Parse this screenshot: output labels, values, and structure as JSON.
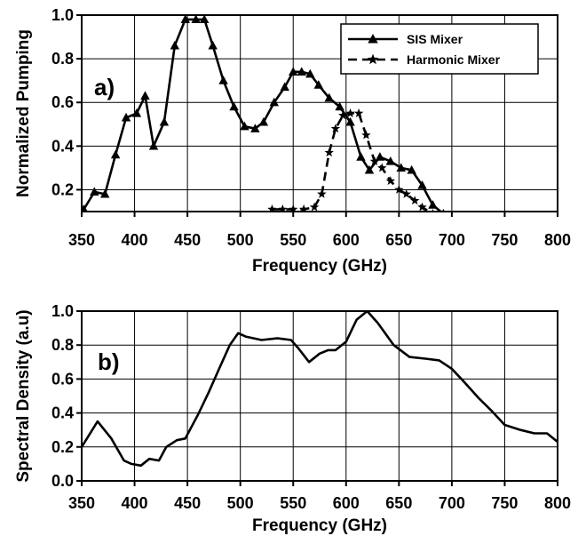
{
  "chart_data": [
    {
      "type": "line",
      "panel_label": "a)",
      "xlabel": "Frequency (GHz)",
      "ylabel": "Normalized Pumping",
      "xlim": [
        350,
        800
      ],
      "ylim": [
        0.1,
        1.0
      ],
      "xticks": [
        350,
        400,
        450,
        500,
        550,
        600,
        650,
        700,
        750,
        800
      ],
      "yticks": [
        0.2,
        0.4,
        0.6,
        0.8,
        1.0
      ],
      "ytick_labels": [
        "0.2",
        "0.4",
        "0.6",
        "0.8",
        "1.0"
      ],
      "grid": true,
      "legend_position": "top-right",
      "series": [
        {
          "name": "SIS Mixer",
          "line": "solid",
          "marker": "triangle",
          "x": [
            352,
            362,
            372,
            382,
            392,
            402,
            410,
            418,
            428,
            438,
            448,
            458,
            466,
            474,
            484,
            494,
            504,
            514,
            522,
            532,
            542,
            550,
            558,
            566,
            574,
            584,
            594,
            604,
            614,
            622,
            632,
            642,
            652,
            662,
            672,
            682,
            692
          ],
          "y": [
            0.11,
            0.19,
            0.18,
            0.36,
            0.53,
            0.55,
            0.63,
            0.4,
            0.51,
            0.86,
            0.98,
            0.98,
            0.98,
            0.86,
            0.7,
            0.58,
            0.49,
            0.48,
            0.51,
            0.6,
            0.67,
            0.74,
            0.74,
            0.73,
            0.68,
            0.62,
            0.58,
            0.51,
            0.35,
            0.29,
            0.35,
            0.33,
            0.3,
            0.29,
            0.22,
            0.13,
            0.09
          ]
        },
        {
          "name": "Harmonic Mixer",
          "line": "dashed",
          "marker": "star",
          "x": [
            530,
            540,
            550,
            560,
            570,
            577,
            584,
            590,
            597,
            604,
            612,
            619,
            627,
            634,
            642,
            650,
            657,
            665,
            672,
            682
          ],
          "y": [
            0.11,
            0.11,
            0.11,
            0.11,
            0.12,
            0.18,
            0.37,
            0.48,
            0.54,
            0.55,
            0.55,
            0.45,
            0.33,
            0.3,
            0.24,
            0.2,
            0.18,
            0.15,
            0.12,
            0.09
          ]
        }
      ]
    },
    {
      "type": "line",
      "panel_label": "b)",
      "xlabel": "Frequency (GHz)",
      "ylabel": "Spectral Density (a.u)",
      "xlim": [
        350,
        800
      ],
      "ylim": [
        0.0,
        1.0
      ],
      "xticks": [
        350,
        400,
        450,
        500,
        550,
        600,
        650,
        700,
        750,
        800
      ],
      "yticks": [
        0.0,
        0.2,
        0.4,
        0.6,
        0.8,
        1.0
      ],
      "ytick_labels": [
        "0.0",
        "0.2",
        "0.4",
        "0.6",
        "0.8",
        "1.0"
      ],
      "grid": true,
      "series": [
        {
          "line": "solid",
          "x": [
            350,
            365,
            378,
            390,
            397,
            406,
            414,
            423,
            430,
            440,
            448,
            460,
            470,
            480,
            490,
            498,
            505,
            520,
            535,
            548,
            555,
            565,
            575,
            583,
            590,
            600,
            610,
            620,
            630,
            645,
            660,
            675,
            688,
            700,
            712,
            725,
            738,
            750,
            765,
            778,
            790,
            800
          ],
          "y": [
            0.2,
            0.35,
            0.25,
            0.12,
            0.1,
            0.09,
            0.13,
            0.12,
            0.2,
            0.24,
            0.25,
            0.39,
            0.52,
            0.66,
            0.8,
            0.87,
            0.85,
            0.83,
            0.84,
            0.83,
            0.78,
            0.7,
            0.75,
            0.77,
            0.77,
            0.82,
            0.95,
            1.0,
            0.93,
            0.8,
            0.73,
            0.72,
            0.71,
            0.66,
            0.58,
            0.49,
            0.41,
            0.33,
            0.3,
            0.28,
            0.28,
            0.23
          ]
        }
      ]
    }
  ],
  "legend_icons": {
    "sis": "triangle-marker-icon",
    "harmonic": "star-marker-icon"
  }
}
